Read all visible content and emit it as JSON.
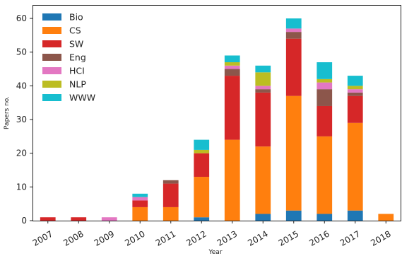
{
  "chart_data": {
    "type": "bar",
    "stacked": true,
    "categories": [
      "2007",
      "2008",
      "2009",
      "2010",
      "2011",
      "2012",
      "2013",
      "2014",
      "2015",
      "2016",
      "2017",
      "2018"
    ],
    "series": [
      {
        "name": "Bio",
        "color": "#1f77b4",
        "values": [
          0,
          0,
          0,
          0,
          0,
          1,
          0,
          2,
          3,
          2,
          3,
          0
        ]
      },
      {
        "name": "CS",
        "color": "#ff7f0e",
        "values": [
          0,
          0,
          0,
          4,
          4,
          12,
          24,
          20,
          34,
          23,
          26,
          2
        ]
      },
      {
        "name": "SW",
        "color": "#d62728",
        "values": [
          1,
          1,
          0,
          2,
          7,
          7,
          19,
          16,
          17,
          9,
          8,
          0
        ]
      },
      {
        "name": "Eng",
        "color": "#8c564b",
        "values": [
          0,
          0,
          0,
          0,
          1,
          0,
          2,
          1,
          2,
          5,
          1,
          0
        ]
      },
      {
        "name": "HCI",
        "color": "#e377c2",
        "values": [
          0,
          0,
          1,
          1,
          0,
          0,
          1,
          1,
          1,
          2,
          1,
          0
        ]
      },
      {
        "name": "NLP",
        "color": "#bcbd22",
        "values": [
          0,
          0,
          0,
          0,
          0,
          1,
          1,
          4,
          0,
          1,
          1,
          0
        ]
      },
      {
        "name": "WWW",
        "color": "#17becf",
        "values": [
          0,
          0,
          0,
          1,
          0,
          3,
          2,
          2,
          3,
          5,
          3,
          0
        ]
      }
    ],
    "xlabel": "Year",
    "ylabel": "Papers no.",
    "ylim": [
      0,
      64
    ],
    "yticks": [
      "0",
      "10",
      "20",
      "30",
      "40",
      "50",
      "60"
    ],
    "legend_position": "top-left",
    "grid": false
  }
}
